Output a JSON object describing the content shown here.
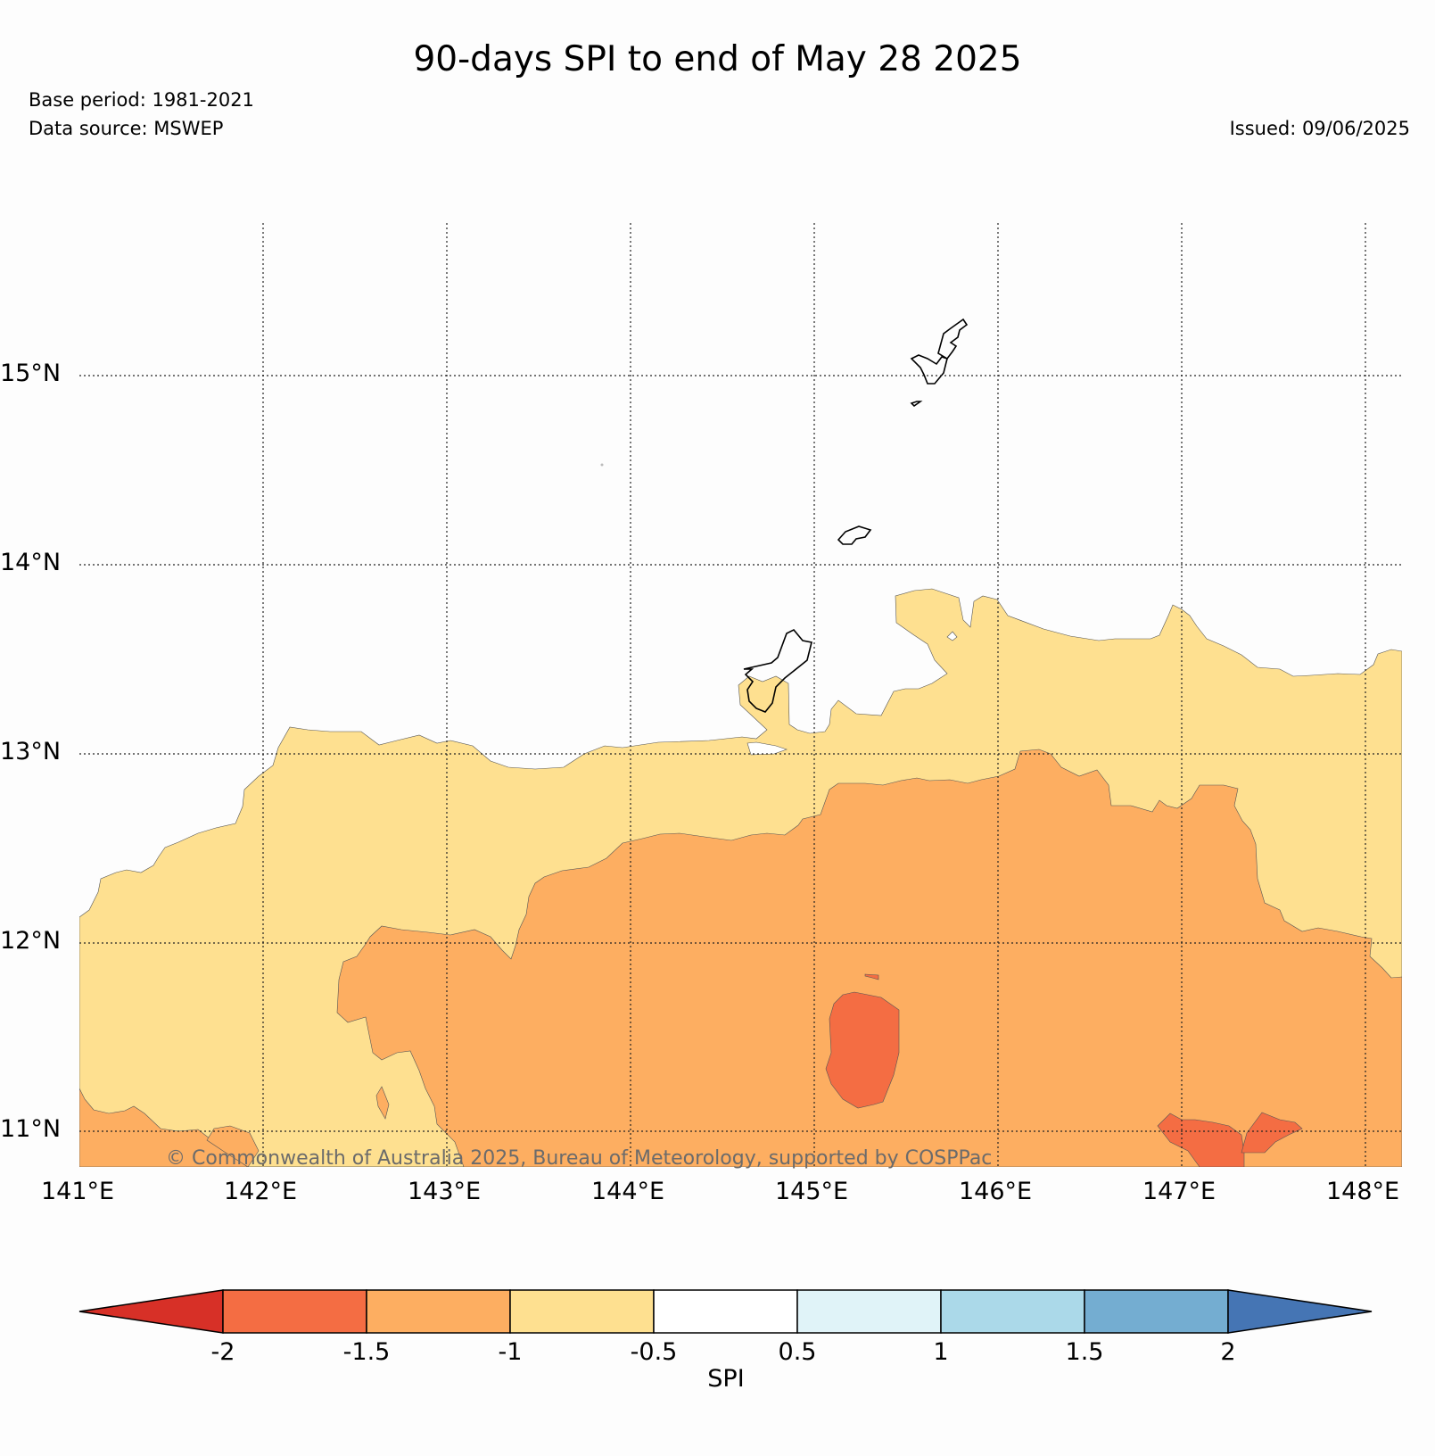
{
  "title": "90-days SPI to end of May 28 2025",
  "base_period": "Base period: 1981-2021",
  "data_source": "Data source: MSWEP",
  "issued": "Issued: 09/06/2025",
  "copyright": "© Commonwealth of Australia 2025, Bureau of Meteorology, supported by COSPPac",
  "map": {
    "lon_labels": [
      "141°E",
      "142°E",
      "143°E",
      "144°E",
      "145°E",
      "146°E",
      "147°E",
      "148°E"
    ],
    "lat_labels": [
      "15°N",
      "14°N",
      "13°N",
      "12°N",
      "11°N"
    ],
    "land_outline_color": "#000000",
    "gridline_style": "dotted"
  },
  "colorbar": {
    "label": "SPI",
    "ticks": [
      "-2",
      "-1.5",
      "-1",
      "-0.5",
      "0.5",
      "1",
      "1.5",
      "2"
    ],
    "extend": "both",
    "bins": [
      {
        "range": "< -2",
        "color": "#d73027"
      },
      {
        "range": "-2 to -1.5",
        "color": "#f46d43"
      },
      {
        "range": "-1.5 to -1",
        "color": "#fdae61"
      },
      {
        "range": "-1 to -0.5",
        "color": "#fee090"
      },
      {
        "range": "-0.5 to 0.5",
        "color": "#ffffff"
      },
      {
        "range": "0.5 to 1",
        "color": "#e0f3f8"
      },
      {
        "range": "1 to 1.5",
        "color": "#abd9e9"
      },
      {
        "range": "1.5 to 2",
        "color": "#74add1"
      },
      {
        "range": "> 2",
        "color": "#4575b4"
      }
    ]
  }
}
